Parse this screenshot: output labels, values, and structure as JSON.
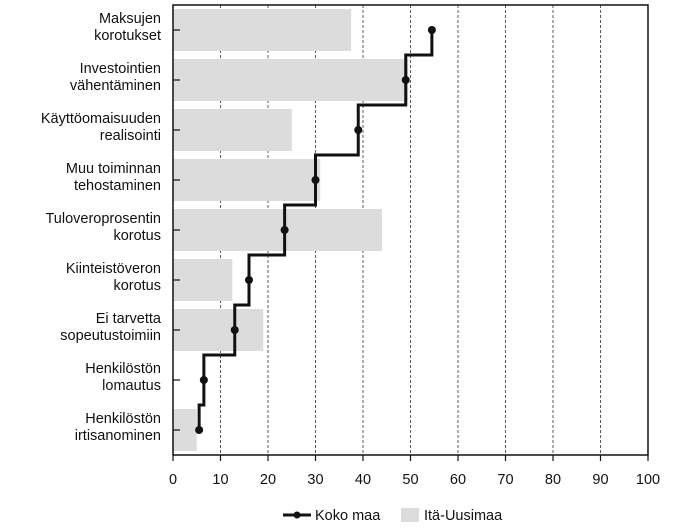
{
  "chart_data": {
    "type": "bar",
    "orientation": "horizontal",
    "categories": [
      [
        "Maksujen",
        "korotukset"
      ],
      [
        "Investointien",
        "vähentäminen"
      ],
      [
        "Käyttöomaisuuden",
        "realisointi"
      ],
      [
        "Muu toiminnan",
        "tehostaminen"
      ],
      [
        "Tuloveroprosentin",
        "korotus"
      ],
      [
        "Kiinteistöveron",
        "korotus"
      ],
      [
        "Ei tarvetta",
        "sopeutustoimiin"
      ],
      [
        "Henkilöstön",
        "lomautus"
      ],
      [
        "Henkilöstön",
        "irtisanominen"
      ]
    ],
    "series": [
      {
        "name": "Itä-Uusimaa",
        "type": "bar",
        "color": "#dcdcdc",
        "values": [
          37.5,
          49.5,
          25,
          31,
          44,
          12.5,
          19,
          0,
          5
        ]
      },
      {
        "name": "Koko maa",
        "type": "step-line",
        "color": "#111111",
        "values": [
          54.5,
          49,
          39,
          30,
          23.5,
          16,
          13,
          6.5,
          5.5
        ]
      }
    ],
    "x_ticks": [
      0,
      10,
      20,
      30,
      40,
      50,
      60,
      70,
      80,
      90,
      100
    ],
    "xlim": [
      0,
      100
    ],
    "grid": "vertical dashed",
    "legend": "bottom-center"
  }
}
